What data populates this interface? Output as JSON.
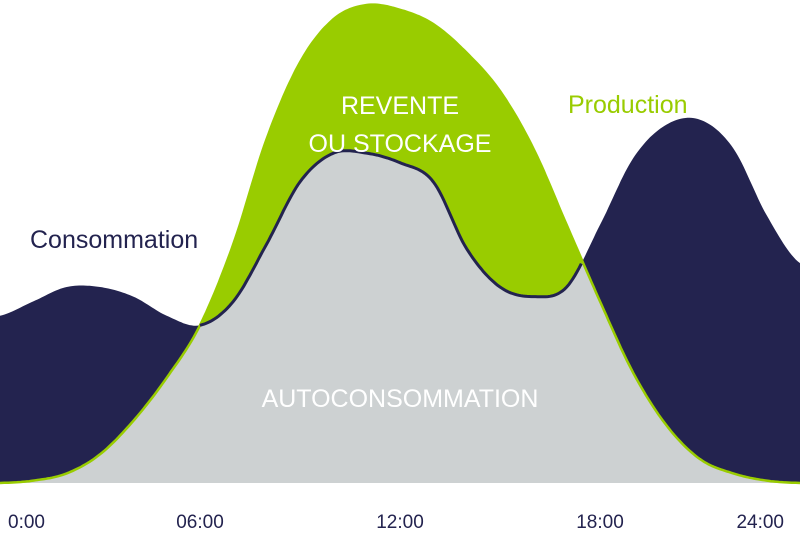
{
  "chart_data": {
    "type": "area",
    "x_ticks": [
      "0:00",
      "06:00",
      "12:00",
      "18:00",
      "24:00"
    ],
    "x_range": [
      0,
      24
    ],
    "y_range": [
      0,
      10
    ],
    "series": [
      {
        "name": "Consommation",
        "color": "#23234f",
        "x": [
          0,
          1,
          2,
          3,
          4,
          5,
          6,
          7,
          8,
          9,
          10,
          11,
          12,
          13,
          14,
          15,
          16,
          17,
          18,
          19,
          20,
          21,
          22,
          23,
          24
        ],
        "y": [
          3.5,
          3.8,
          4.1,
          4.1,
          3.9,
          3.5,
          3.3,
          3.8,
          5.0,
          6.3,
          6.9,
          6.9,
          6.7,
          6.3,
          4.9,
          4.1,
          3.9,
          4.1,
          5.4,
          6.8,
          7.5,
          7.6,
          7.0,
          5.6,
          4.6
        ]
      },
      {
        "name": "Production",
        "color": "#99cc00",
        "x": [
          0,
          1,
          2,
          3,
          4,
          5,
          6,
          7,
          8,
          9,
          10,
          11,
          12,
          13,
          14,
          15,
          16,
          17,
          18,
          19,
          20,
          21,
          22,
          23,
          24
        ],
        "y": [
          0.0,
          0.05,
          0.2,
          0.6,
          1.3,
          2.2,
          3.3,
          5.0,
          7.2,
          8.8,
          9.7,
          10.0,
          9.9,
          9.6,
          9.0,
          8.2,
          7.0,
          5.4,
          3.8,
          2.3,
          1.2,
          0.5,
          0.2,
          0.05,
          0.0
        ]
      }
    ],
    "area_labels": {
      "resale": [
        "REVENTE",
        "OU STOCKAGE"
      ],
      "self": "AUTOCONSOMMATION"
    },
    "fill_colors": {
      "self": "#cdd1d2",
      "resale": "#99cc00",
      "consumption": "#23234f"
    },
    "grid": false,
    "legend": "inline"
  }
}
